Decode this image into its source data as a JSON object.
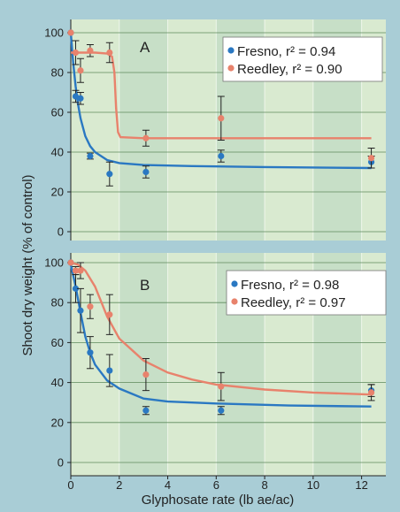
{
  "chart_data": [
    {
      "type": "scatter",
      "panel_label": "A",
      "xlim": [
        0,
        13
      ],
      "ylim": [
        0,
        105
      ],
      "yticks": [
        0,
        20,
        40,
        60,
        80,
        100
      ],
      "series": [
        {
          "name": "Fresno, r² = 0.94",
          "color": "#2a78c2",
          "points": [
            {
              "x": 0,
              "y": 100,
              "err": 0
            },
            {
              "x": 0.2,
              "y": 68,
              "err": 3
            },
            {
              "x": 0.4,
              "y": 67,
              "err": 3
            },
            {
              "x": 0.8,
              "y": 38,
              "err": 1.5
            },
            {
              "x": 1.6,
              "y": 29,
              "err": 6
            },
            {
              "x": 3.1,
              "y": 30,
              "err": 3
            },
            {
              "x": 6.2,
              "y": 38,
              "err": 3
            },
            {
              "x": 12.4,
              "y": 35,
              "err": 3
            }
          ],
          "curve": [
            [
              0,
              100
            ],
            [
              0.1,
              85
            ],
            [
              0.2,
              73
            ],
            [
              0.3,
              64
            ],
            [
              0.4,
              57
            ],
            [
              0.6,
              48
            ],
            [
              0.8,
              43
            ],
            [
              1.0,
              40
            ],
            [
              1.5,
              36
            ],
            [
              2.0,
              34.5
            ],
            [
              3,
              33.5
            ],
            [
              5,
              33
            ],
            [
              8,
              32.5
            ],
            [
              12.4,
              32
            ]
          ]
        },
        {
          "name": "Reedley, r² = 0.90",
          "color": "#e8826c",
          "points": [
            {
              "x": 0,
              "y": 100,
              "err": 0
            },
            {
              "x": 0.2,
              "y": 90,
              "err": 6
            },
            {
              "x": 0.4,
              "y": 81,
              "err": 6
            },
            {
              "x": 0.8,
              "y": 91,
              "err": 3
            },
            {
              "x": 1.6,
              "y": 90,
              "err": 5
            },
            {
              "x": 3.1,
              "y": 47,
              "err": 4
            },
            {
              "x": 6.2,
              "y": 57,
              "err": 11
            },
            {
              "x": 12.4,
              "y": 37,
              "err": 5
            }
          ],
          "curve": [
            [
              0,
              90
            ],
            [
              1.0,
              90
            ],
            [
              1.5,
              89.5
            ],
            [
              1.7,
              88
            ],
            [
              1.8,
              80
            ],
            [
              1.87,
              62
            ],
            [
              1.95,
              50
            ],
            [
              2.05,
              47.5
            ],
            [
              3,
              47
            ],
            [
              12.4,
              47
            ]
          ]
        }
      ]
    },
    {
      "type": "scatter",
      "panel_label": "B",
      "xlim": [
        0,
        13
      ],
      "ylim": [
        0,
        105
      ],
      "yticks": [
        0,
        20,
        40,
        60,
        80,
        100
      ],
      "xticks": [
        0,
        2,
        4,
        6,
        8,
        10,
        12
      ],
      "xlabel": "Glyphosate rate (lb ae/ac)",
      "ylabel": "Shoot dry weight (% of control)",
      "series": [
        {
          "name": "Fresno, r² = 0.98",
          "color": "#2a78c2",
          "points": [
            {
              "x": 0,
              "y": 100,
              "err": 0
            },
            {
              "x": 0.2,
              "y": 87,
              "err": 7
            },
            {
              "x": 0.4,
              "y": 76,
              "err": 11
            },
            {
              "x": 0.8,
              "y": 55,
              "err": 8
            },
            {
              "x": 1.6,
              "y": 46,
              "err": 8
            },
            {
              "x": 3.1,
              "y": 26,
              "err": 2
            },
            {
              "x": 6.2,
              "y": 26,
              "err": 2
            },
            {
              "x": 12.4,
              "y": 36,
              "err": 3
            }
          ],
          "curve": [
            [
              0,
              99
            ],
            [
              0.2,
              88
            ],
            [
              0.4,
              75
            ],
            [
              0.6,
              63
            ],
            [
              0.8,
              55
            ],
            [
              1.0,
              49
            ],
            [
              1.5,
              41
            ],
            [
              2,
              37
            ],
            [
              3,
              32
            ],
            [
              4,
              30.5
            ],
            [
              6,
              29.5
            ],
            [
              9,
              28.5
            ],
            [
              12.4,
              28
            ]
          ]
        },
        {
          "name": "Reedley, r² = 0.97",
          "color": "#e8826c",
          "points": [
            {
              "x": 0,
              "y": 100,
              "err": 0
            },
            {
              "x": 0.2,
              "y": 96,
              "err": 2
            },
            {
              "x": 0.4,
              "y": 96,
              "err": 4
            },
            {
              "x": 0.8,
              "y": 78,
              "err": 6
            },
            {
              "x": 1.6,
              "y": 74,
              "err": 10
            },
            {
              "x": 3.1,
              "y": 44,
              "err": 8
            },
            {
              "x": 6.2,
              "y": 38,
              "err": 7
            },
            {
              "x": 12.4,
              "y": 35,
              "err": 4
            }
          ],
          "curve": [
            [
              0,
              100
            ],
            [
              0.3,
              99
            ],
            [
              0.6,
              96
            ],
            [
              1.0,
              88
            ],
            [
              1.5,
              73
            ],
            [
              2,
              62
            ],
            [
              3,
              51
            ],
            [
              4,
              45
            ],
            [
              5,
              41.5
            ],
            [
              6,
              39
            ],
            [
              8,
              36.5
            ],
            [
              10,
              35
            ],
            [
              12.4,
              34
            ]
          ]
        }
      ]
    }
  ]
}
